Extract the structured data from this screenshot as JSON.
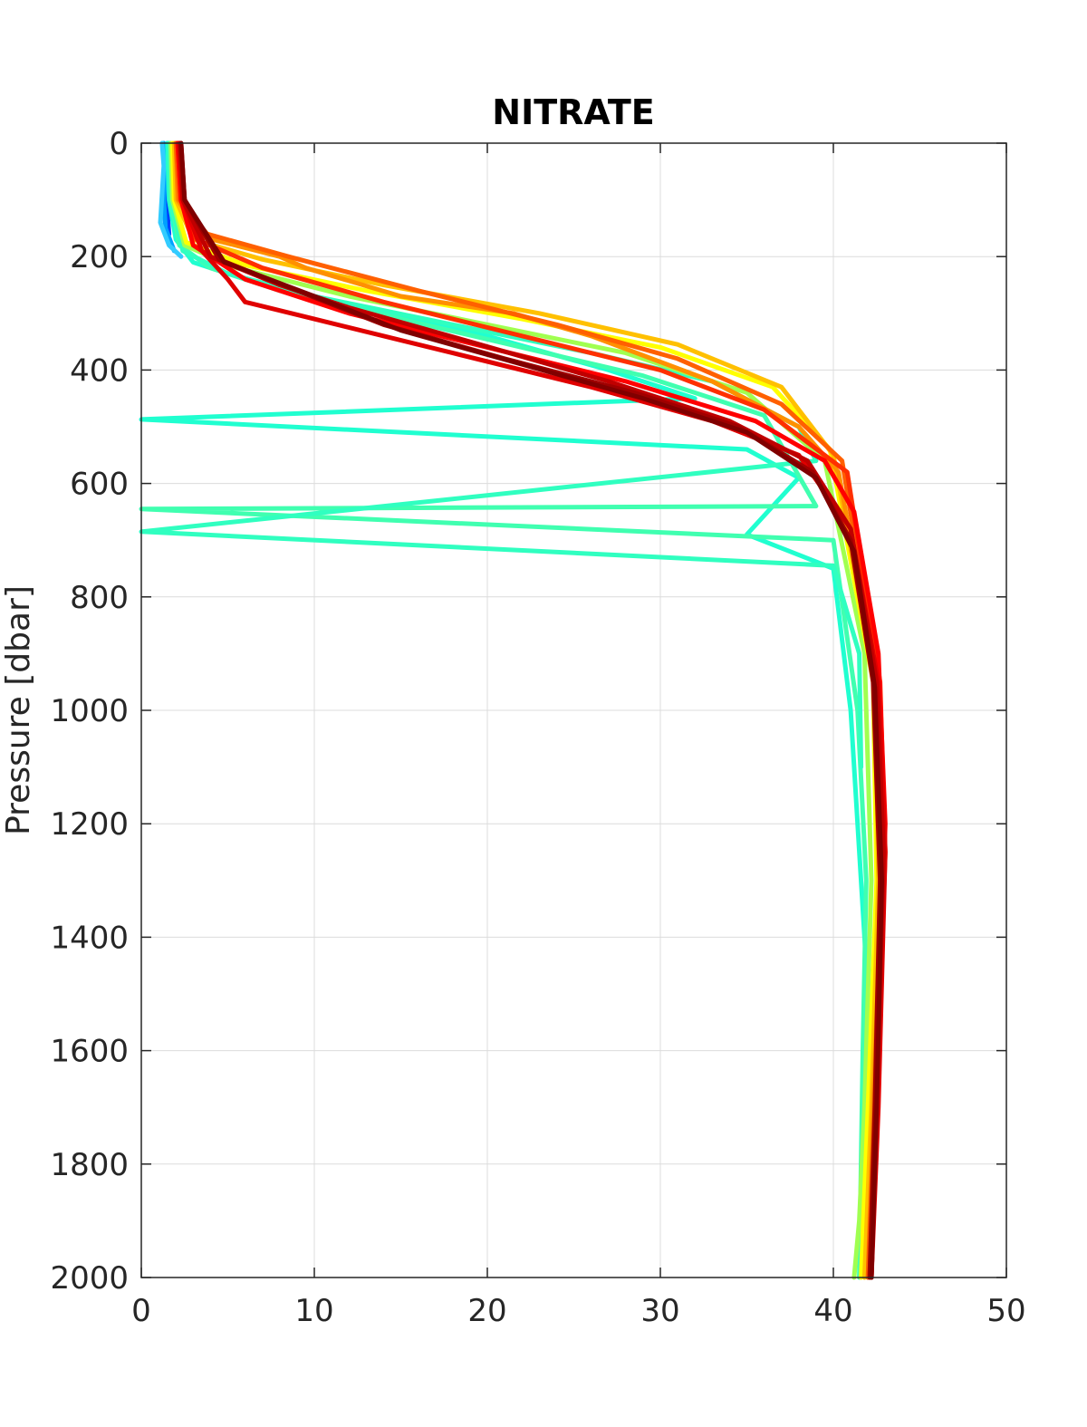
{
  "chart_data": {
    "type": "line",
    "title": "NITRATE",
    "xlabel": "",
    "ylabel": "Pressure [dbar]",
    "xlim": [
      0,
      50
    ],
    "ylim": [
      0,
      2000
    ],
    "y_reversed": true,
    "grid": true,
    "legend": "none",
    "x_ticks": [
      "0",
      "10",
      "20",
      "30",
      "40",
      "50"
    ],
    "y_ticks": [
      "0",
      "200",
      "400",
      "600",
      "800",
      "1000",
      "1200",
      "1400",
      "1600",
      "1800",
      "2000"
    ],
    "colormap": "jet (profiles colored early→late, blue→dark red)",
    "series": [
      {
        "color": "#0040ff",
        "x": [
          1.5,
          1.4,
          1.5,
          1.6,
          1.5
        ],
        "y": [
          0,
          60,
          120,
          160,
          170
        ]
      },
      {
        "color": "#00a0ff",
        "x": [
          1.3,
          1.4,
          1.3,
          1.4,
          1.9
        ],
        "y": [
          0,
          50,
          100,
          150,
          190
        ]
      },
      {
        "color": "#33ccff",
        "x": [
          1.2,
          1.3,
          1.1,
          1.6,
          2.3
        ],
        "y": [
          0,
          40,
          140,
          180,
          200
        ]
      },
      {
        "color": "#20ffd0",
        "x": [
          1.5,
          1.6,
          2.0,
          3.0,
          6.0,
          12.0,
          20.0,
          27.0,
          32.0,
          0.0,
          35.0,
          38.0,
          35.0,
          40.0,
          41.0,
          42.0,
          42.0
        ],
        "y": [
          0,
          100,
          170,
          210,
          240,
          290,
          340,
          400,
          450,
          487,
          540,
          590,
          690,
          750,
          1000,
          1500,
          2000
        ]
      },
      {
        "color": "#40ffb0",
        "x": [
          1.6,
          1.7,
          2.2,
          4.0,
          8.0,
          15.0,
          22.0,
          29.0,
          36.0,
          39.0,
          0.0,
          40.0,
          41.4,
          41.9,
          41.7,
          41.5
        ],
        "y": [
          0,
          100,
          180,
          220,
          260,
          310,
          360,
          410,
          480,
          640,
          645,
          700,
          1000,
          1300,
          1600,
          2000
        ]
      },
      {
        "color": "#30ffc0",
        "x": [
          1.6,
          1.8,
          2.4,
          5.0,
          10.0,
          18.0,
          26.0,
          33.0,
          38.0,
          39.0,
          0.0,
          40.0,
          41.5,
          41.6
        ],
        "y": [
          0,
          110,
          190,
          230,
          270,
          320,
          370,
          420,
          500,
          560,
          685,
          745,
          900,
          1100
        ]
      },
      {
        "color": "#a0ff50",
        "x": [
          1.7,
          1.8,
          2.5,
          5.5,
          12.0,
          20.0,
          28.0,
          35.0,
          39.5,
          41.8,
          42.2,
          41.8,
          41.5,
          41.2
        ],
        "y": [
          0,
          100,
          180,
          220,
          270,
          320,
          370,
          440,
          560,
          900,
          1300,
          1700,
          1900,
          2000
        ]
      },
      {
        "color": "#ffff00",
        "x": [
          1.8,
          1.9,
          2.6,
          6.0,
          13.0,
          22.0,
          30.0,
          36.5,
          39.8,
          42.3,
          42.5,
          42.0,
          41.6
        ],
        "y": [
          0,
          100,
          175,
          215,
          260,
          310,
          360,
          430,
          540,
          950,
          1300,
          1700,
          2000
        ]
      },
      {
        "color": "#ffc000",
        "x": [
          1.9,
          2.0,
          3.0,
          7.0,
          14.0,
          23.0,
          31.0,
          37.0,
          40.0,
          42.4,
          42.6,
          42.2,
          41.8
        ],
        "y": [
          0,
          100,
          170,
          205,
          250,
          300,
          355,
          430,
          550,
          950,
          1300,
          1700,
          2000
        ]
      },
      {
        "color": "#ff9000",
        "x": [
          2.0,
          2.1,
          3.5,
          8.0,
          9.5,
          15.0,
          21.5,
          26.0,
          33.0,
          38.0,
          40.3,
          42.5,
          42.8,
          42.3,
          42.0
        ],
        "y": [
          0,
          100,
          165,
          200,
          220,
          270,
          300,
          340,
          420,
          500,
          580,
          950,
          1300,
          1700,
          2000
        ]
      },
      {
        "color": "#ff6000",
        "x": [
          2.0,
          2.2,
          3.8,
          8.5,
          16.0,
          24.0,
          31.0,
          37.0,
          40.5,
          42.6,
          42.9,
          42.4,
          42.0
        ],
        "y": [
          0,
          100,
          160,
          200,
          260,
          320,
          380,
          460,
          560,
          950,
          1300,
          1700,
          2000
        ]
      },
      {
        "color": "#ff3000",
        "x": [
          2.1,
          2.3,
          3.2,
          7.0,
          14.0,
          22.0,
          30.0,
          36.0,
          40.8,
          42.7,
          43.0,
          42.5,
          42.1
        ],
        "y": [
          0,
          100,
          170,
          220,
          280,
          340,
          400,
          470,
          580,
          950,
          1250,
          1700,
          2000
        ]
      },
      {
        "color": "#ff0000",
        "x": [
          2.1,
          2.3,
          3.0,
          6.0,
          12.0,
          20.0,
          28.0,
          35.5,
          39.5,
          41.2,
          42.6,
          43.0,
          42.6,
          42.2
        ],
        "y": [
          0,
          100,
          180,
          240,
          300,
          360,
          420,
          490,
          560,
          650,
          900,
          1200,
          1600,
          2000
        ]
      },
      {
        "color": "#e00000",
        "x": [
          2.2,
          2.4,
          3.5,
          5.0,
          6.0,
          10.0,
          18.0,
          26.0,
          33.0,
          38.0,
          41.0,
          42.6,
          43.0,
          42.6,
          42.2
        ],
        "y": [
          0,
          100,
          190,
          240,
          280,
          310,
          370,
          430,
          490,
          550,
          680,
          950,
          1250,
          1700,
          2000
        ]
      },
      {
        "color": "#c00000",
        "x": [
          2.2,
          2.4,
          4.0,
          8.0,
          12.0,
          19.0,
          27.0,
          34.0,
          38.5,
          41.0,
          42.5,
          42.9,
          42.5,
          42.2
        ],
        "y": [
          0,
          100,
          200,
          250,
          290,
          350,
          420,
          490,
          560,
          680,
          950,
          1250,
          1700,
          2000
        ]
      },
      {
        "color": "#a00000",
        "x": [
          2.3,
          2.5,
          4.5,
          9.0,
          14.0,
          21.0,
          28.5,
          34.5,
          38.8,
          41.0,
          42.3,
          42.7,
          42.4,
          42.1
        ],
        "y": [
          0,
          100,
          205,
          260,
          320,
          380,
          440,
          500,
          580,
          700,
          950,
          1300,
          1700,
          2000
        ]
      },
      {
        "color": "#800000",
        "x": [
          2.3,
          2.5,
          4.8,
          10.0,
          15.0,
          22.0,
          29.0,
          35.0,
          39.0,
          41.2,
          42.4,
          42.8,
          42.5,
          42.2
        ],
        "y": [
          0,
          100,
          210,
          270,
          330,
          390,
          450,
          510,
          590,
          720,
          960,
          1300,
          1700,
          2000
        ]
      }
    ]
  }
}
